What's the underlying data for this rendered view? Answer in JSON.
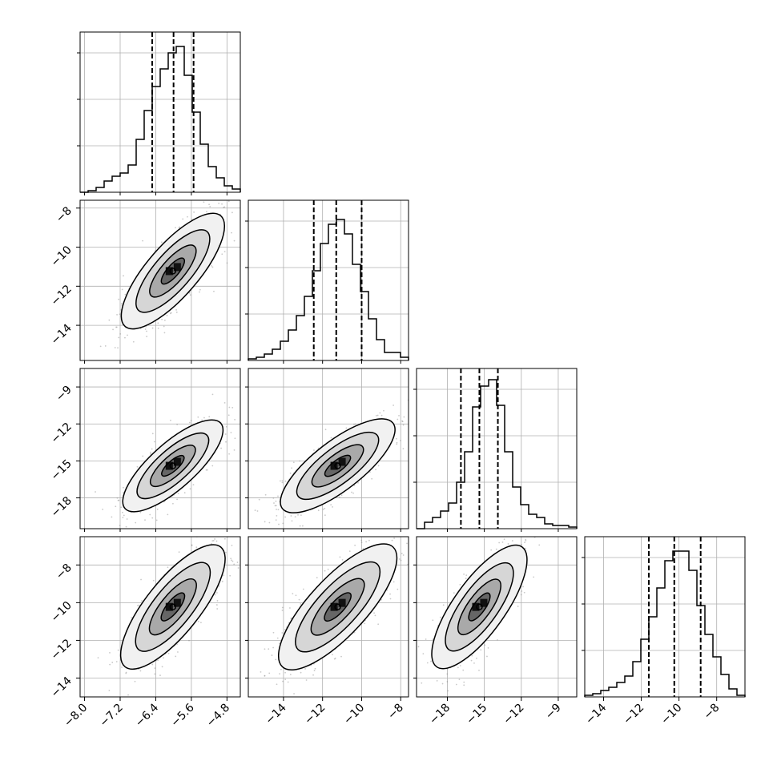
{
  "chart_data": {
    "type": "corner",
    "parameters": [
      {
        "range": [
          -8.1,
          -4.5
        ],
        "ticks": [
          -8.0,
          -7.2,
          -6.4,
          -5.6,
          -4.8
        ],
        "tick_labels": [
          "−8.0",
          "−7.2",
          "−6.4",
          "−5.6",
          "−4.8"
        ],
        "quantiles": [
          -6.48,
          -6.0,
          -5.55
        ]
      },
      {
        "range": [
          -15.8,
          -7.6
        ],
        "ticks": [
          -14,
          -12,
          -10,
          -8
        ],
        "tick_labels": [
          "−14",
          "−12",
          "−10",
          "−8"
        ],
        "quantiles": [
          -12.45,
          -11.3,
          -10.0
        ]
      },
      {
        "range": [
          -20.5,
          -7.5
        ],
        "ticks": [
          -18,
          -15,
          -12,
          -9
        ],
        "tick_labels": [
          "−18",
          "−15",
          "−12",
          "−9"
        ],
        "quantiles": [
          -16.9,
          -15.4,
          -13.9
        ]
      },
      {
        "range": [
          -15.0,
          -6.5
        ],
        "ticks": [
          -14,
          -12,
          -10,
          -8
        ],
        "tick_labels": [
          "−14",
          "−12",
          "−10",
          "−8"
        ],
        "quantiles": [
          -11.6,
          -10.25,
          -8.85
        ]
      }
    ],
    "histograms": [
      [
        0,
        0.01,
        0.03,
        0.07,
        0.1,
        0.12,
        0.17,
        0.33,
        0.51,
        0.66,
        0.77,
        0.87,
        0.91,
        0.73,
        0.5,
        0.3,
        0.16,
        0.09,
        0.04,
        0.02
      ],
      [
        0.01,
        0.02,
        0.04,
        0.07,
        0.12,
        0.19,
        0.28,
        0.4,
        0.56,
        0.73,
        0.85,
        0.88,
        0.79,
        0.6,
        0.43,
        0.26,
        0.13,
        0.05,
        0.05,
        0.02
      ],
      [
        0,
        0.04,
        0.07,
        0.11,
        0.16,
        0.29,
        0.48,
        0.76,
        0.89,
        0.93,
        0.77,
        0.48,
        0.26,
        0.15,
        0.09,
        0.07,
        0.03,
        0.02,
        0.02,
        0.01
      ],
      [
        0.01,
        0.02,
        0.04,
        0.06,
        0.09,
        0.13,
        0.22,
        0.36,
        0.5,
        0.68,
        0.85,
        0.91,
        0.91,
        0.79,
        0.57,
        0.39,
        0.25,
        0.14,
        0.05,
        0.01
      ]
    ],
    "grid": true
  }
}
